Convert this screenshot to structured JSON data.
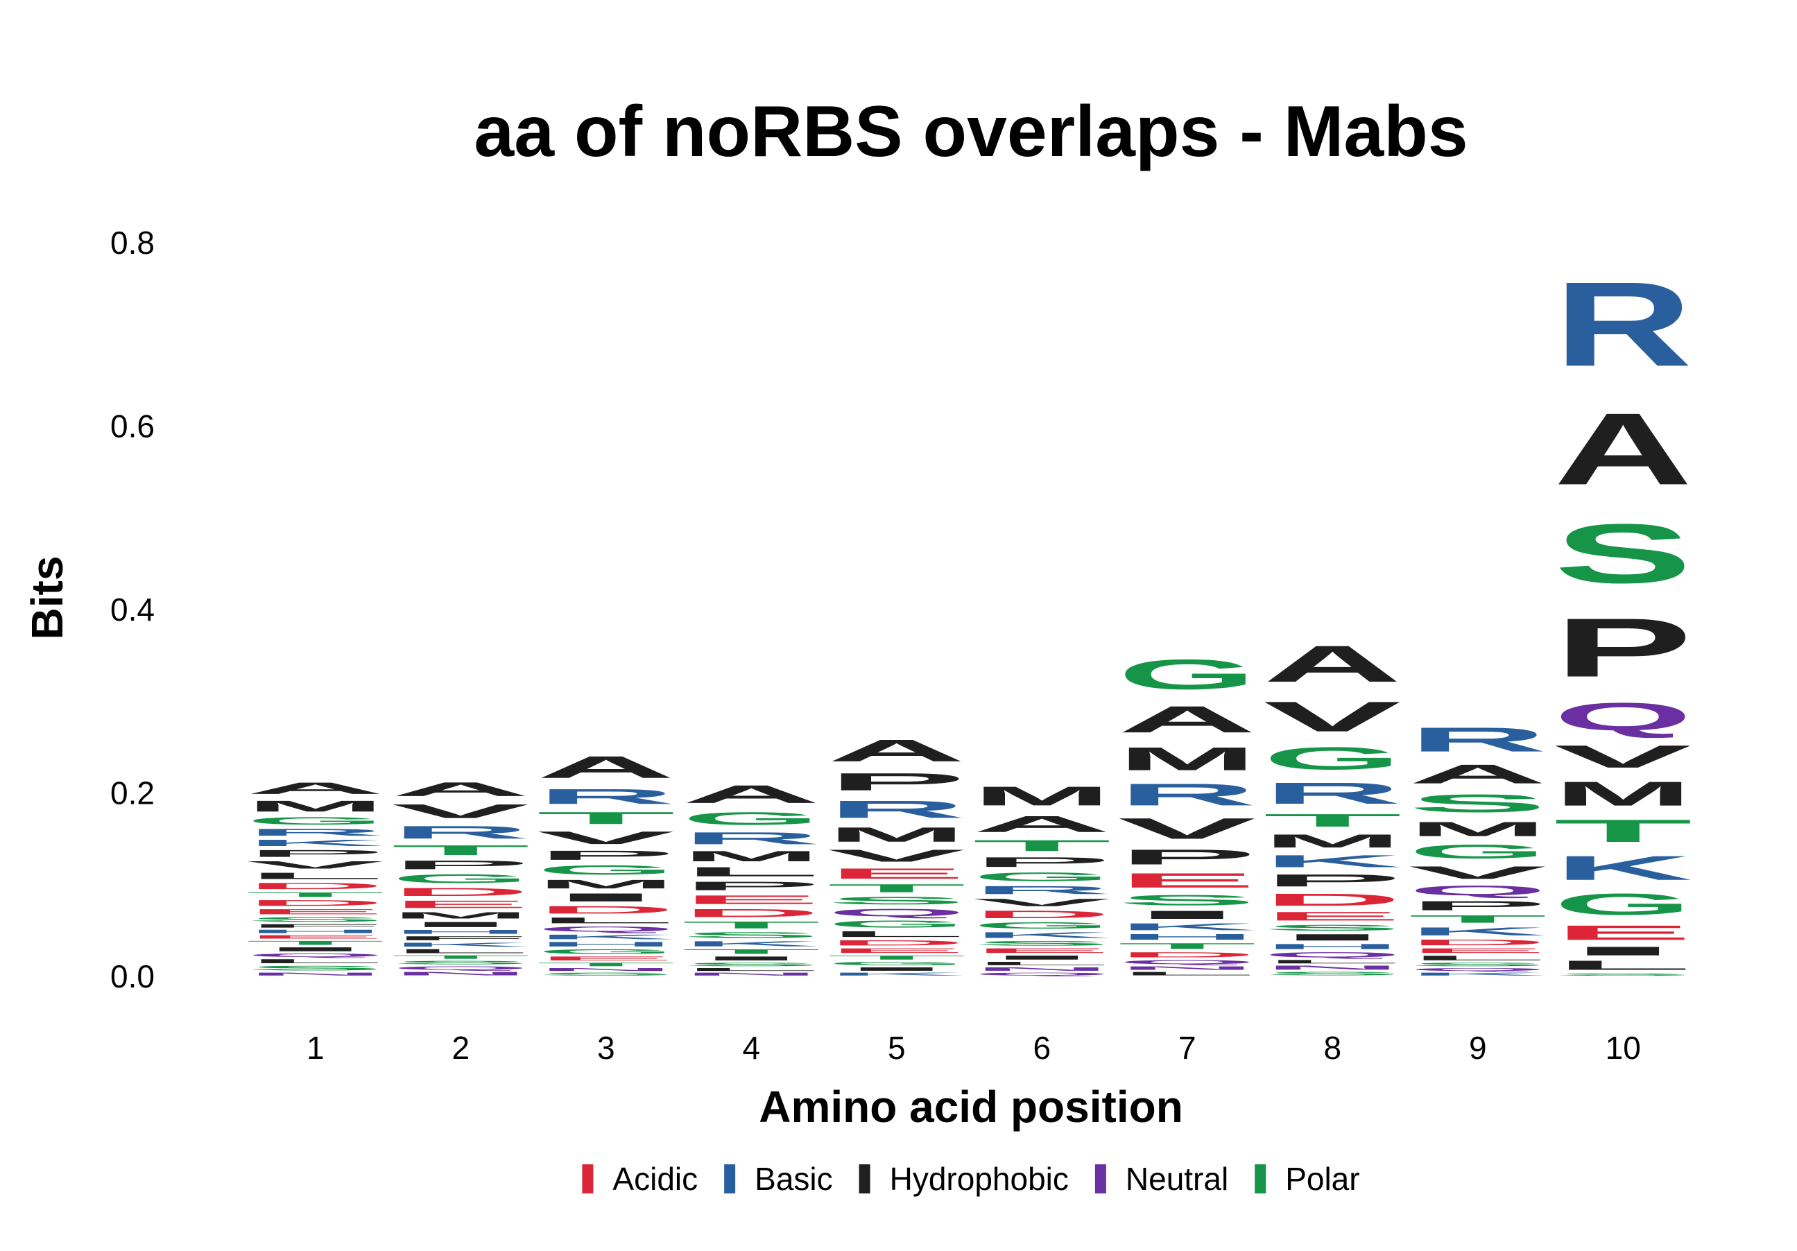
{
  "chart_data": {
    "type": "sequence-logo",
    "title": "aa of noRBS overlaps - Mabs",
    "xlabel": "Amino acid position",
    "ylabel": "Bits",
    "ylim": [
      0,
      0.8
    ],
    "yticks": [
      0.0,
      0.2,
      0.4,
      0.6,
      0.8
    ],
    "ytick_labels": [
      "0.0",
      "0.2",
      "0.4",
      "0.6",
      "0.8"
    ],
    "positions": [
      1,
      2,
      3,
      4,
      5,
      6,
      7,
      8,
      9,
      10
    ],
    "position_labels": [
      "1",
      "2",
      "3",
      "4",
      "5",
      "6",
      "7",
      "8",
      "9",
      "10"
    ],
    "legend": {
      "placement": "bottom",
      "entries": [
        {
          "name": "Acidic",
          "color": "#DC2537"
        },
        {
          "name": "Basic",
          "color": "#2A5F9E"
        },
        {
          "name": "Hydrophobic",
          "color": "#1F1F1F"
        },
        {
          "name": "Neutral",
          "color": "#6A2FA0"
        },
        {
          "name": "Polar",
          "color": "#169548"
        }
      ]
    },
    "aa_classes": {
      "Acidic": [
        "D",
        "E"
      ],
      "Basic": [
        "H",
        "K",
        "R"
      ],
      "Hydrophobic": [
        "A",
        "F",
        "I",
        "L",
        "M",
        "P",
        "V",
        "W"
      ],
      "Neutral": [
        "N",
        "Q"
      ],
      "Polar": [
        "C",
        "G",
        "S",
        "T",
        "Y"
      ]
    },
    "stacks": [
      {
        "position": 1,
        "letters": [
          {
            "aa": "N",
            "bits": 0.005
          },
          {
            "aa": "S",
            "bits": 0.008
          },
          {
            "aa": "L",
            "bits": 0.007
          },
          {
            "aa": "Q",
            "bits": 0.006
          },
          {
            "aa": "I",
            "bits": 0.007
          },
          {
            "aa": "T",
            "bits": 0.007
          },
          {
            "aa": "E",
            "bits": 0.006
          },
          {
            "aa": "H",
            "bits": 0.006
          },
          {
            "aa": "F",
            "bits": 0.006
          },
          {
            "aa": "S",
            "bits": 0.008
          },
          {
            "aa": "E",
            "bits": 0.009
          },
          {
            "aa": "D",
            "bits": 0.01
          },
          {
            "aa": "T",
            "bits": 0.008
          },
          {
            "aa": "D",
            "bits": 0.011
          },
          {
            "aa": "L",
            "bits": 0.011
          },
          {
            "aa": "V",
            "bits": 0.013
          },
          {
            "aa": "P",
            "bits": 0.012
          },
          {
            "aa": "K",
            "bits": 0.011
          },
          {
            "aa": "R",
            "bits": 0.012
          },
          {
            "aa": "G",
            "bits": 0.013
          },
          {
            "aa": "M",
            "bits": 0.019
          },
          {
            "aa": "A",
            "bits": 0.02
          }
        ]
      },
      {
        "position": 2,
        "letters": [
          {
            "aa": "N",
            "bits": 0.006
          },
          {
            "aa": "Q",
            "bits": 0.006
          },
          {
            "aa": "S",
            "bits": 0.006
          },
          {
            "aa": "T",
            "bits": 0.006
          },
          {
            "aa": "L",
            "bits": 0.007
          },
          {
            "aa": "K",
            "bits": 0.007
          },
          {
            "aa": "F",
            "bits": 0.007
          },
          {
            "aa": "H",
            "bits": 0.007
          },
          {
            "aa": "I",
            "bits": 0.009
          },
          {
            "aa": "M",
            "bits": 0.011
          },
          {
            "aa": "E",
            "bits": 0.013
          },
          {
            "aa": "D",
            "bits": 0.014
          },
          {
            "aa": "G",
            "bits": 0.015
          },
          {
            "aa": "P",
            "bits": 0.015
          },
          {
            "aa": "T",
            "bits": 0.017
          },
          {
            "aa": "R",
            "bits": 0.022
          },
          {
            "aa": "V",
            "bits": 0.024
          },
          {
            "aa": "A",
            "bits": 0.024
          }
        ]
      },
      {
        "position": 3,
        "letters": [
          {
            "aa": "S",
            "bits": 0.005
          },
          {
            "aa": "N",
            "bits": 0.005
          },
          {
            "aa": "T",
            "bits": 0.006
          },
          {
            "aa": "E",
            "bits": 0.007
          },
          {
            "aa": "G",
            "bits": 0.008
          },
          {
            "aa": "H",
            "bits": 0.008
          },
          {
            "aa": "K",
            "bits": 0.008
          },
          {
            "aa": "Q",
            "bits": 0.009
          },
          {
            "aa": "L",
            "bits": 0.01
          },
          {
            "aa": "D",
            "bits": 0.013
          },
          {
            "aa": "I",
            "bits": 0.014
          },
          {
            "aa": "M",
            "bits": 0.015
          },
          {
            "aa": "G",
            "bits": 0.016
          },
          {
            "aa": "P",
            "bits": 0.016
          },
          {
            "aa": "V",
            "bits": 0.022
          },
          {
            "aa": "T",
            "bits": 0.021
          },
          {
            "aa": "R",
            "bits": 0.026
          },
          {
            "aa": "A",
            "bits": 0.038
          }
        ]
      },
      {
        "position": 4,
        "letters": [
          {
            "aa": "N",
            "bits": 0.005
          },
          {
            "aa": "L",
            "bits": 0.005
          },
          {
            "aa": "S",
            "bits": 0.006
          },
          {
            "aa": "I",
            "bits": 0.007
          },
          {
            "aa": "T",
            "bits": 0.008
          },
          {
            "aa": "K",
            "bits": 0.009
          },
          {
            "aa": "S",
            "bits": 0.01
          },
          {
            "aa": "T",
            "bits": 0.012
          },
          {
            "aa": "D",
            "bits": 0.014
          },
          {
            "aa": "E",
            "bits": 0.015
          },
          {
            "aa": "P",
            "bits": 0.015
          },
          {
            "aa": "L",
            "bits": 0.016
          },
          {
            "aa": "M",
            "bits": 0.018
          },
          {
            "aa": "R",
            "bits": 0.021
          },
          {
            "aa": "G",
            "bits": 0.022
          },
          {
            "aa": "A",
            "bits": 0.031
          }
        ]
      },
      {
        "position": 5,
        "letters": [
          {
            "aa": "K",
            "bits": 0.005
          },
          {
            "aa": "I",
            "bits": 0.006
          },
          {
            "aa": "G",
            "bits": 0.006
          },
          {
            "aa": "T",
            "bits": 0.007
          },
          {
            "aa": "E",
            "bits": 0.008
          },
          {
            "aa": "D",
            "bits": 0.009
          },
          {
            "aa": "L",
            "bits": 0.01
          },
          {
            "aa": "G",
            "bits": 0.012
          },
          {
            "aa": "Q",
            "bits": 0.013
          },
          {
            "aa": "S",
            "bits": 0.013
          },
          {
            "aa": "T",
            "bits": 0.014
          },
          {
            "aa": "E",
            "bits": 0.018
          },
          {
            "aa": "V",
            "bits": 0.021
          },
          {
            "aa": "M",
            "bits": 0.025
          },
          {
            "aa": "R",
            "bits": 0.03
          },
          {
            "aa": "P",
            "bits": 0.03
          },
          {
            "aa": "A",
            "bits": 0.038
          }
        ]
      },
      {
        "position": 6,
        "letters": [
          {
            "aa": "Q",
            "bits": 0.005
          },
          {
            "aa": "N",
            "bits": 0.006
          },
          {
            "aa": "L",
            "bits": 0.006
          },
          {
            "aa": "I",
            "bits": 0.007
          },
          {
            "aa": "E",
            "bits": 0.008
          },
          {
            "aa": "S",
            "bits": 0.008
          },
          {
            "aa": "K",
            "bits": 0.01
          },
          {
            "aa": "G",
            "bits": 0.011
          },
          {
            "aa": "D",
            "bits": 0.013
          },
          {
            "aa": "V",
            "bits": 0.013
          },
          {
            "aa": "R",
            "bits": 0.014
          },
          {
            "aa": "G",
            "bits": 0.015
          },
          {
            "aa": "P",
            "bits": 0.017
          },
          {
            "aa": "T",
            "bits": 0.019
          },
          {
            "aa": "A",
            "bits": 0.028
          },
          {
            "aa": "M",
            "bits": 0.033
          }
        ]
      },
      {
        "position": 7,
        "letters": [
          {
            "aa": "L",
            "bits": 0.006
          },
          {
            "aa": "N",
            "bits": 0.006
          },
          {
            "aa": "Q",
            "bits": 0.007
          },
          {
            "aa": "D",
            "bits": 0.009
          },
          {
            "aa": "T",
            "bits": 0.01
          },
          {
            "aa": "H",
            "bits": 0.01
          },
          {
            "aa": "K",
            "bits": 0.012
          },
          {
            "aa": "I",
            "bits": 0.014
          },
          {
            "aa": "S",
            "bits": 0.018
          },
          {
            "aa": "E",
            "bits": 0.025
          },
          {
            "aa": "P",
            "bits": 0.026
          },
          {
            "aa": "V",
            "bits": 0.036
          },
          {
            "aa": "R",
            "bits": 0.038
          },
          {
            "aa": "M",
            "bits": 0.04
          },
          {
            "aa": "A",
            "bits": 0.046
          },
          {
            "aa": "G",
            "bits": 0.052
          }
        ]
      },
      {
        "position": 8,
        "letters": [
          {
            "aa": "S",
            "bits": 0.006
          },
          {
            "aa": "N",
            "bits": 0.007
          },
          {
            "aa": "L",
            "bits": 0.006
          },
          {
            "aa": "Q",
            "bits": 0.009
          },
          {
            "aa": "H",
            "bits": 0.009
          },
          {
            "aa": "I",
            "bits": 0.011
          },
          {
            "aa": "S",
            "bits": 0.01
          },
          {
            "aa": "E",
            "bits": 0.015
          },
          {
            "aa": "D",
            "bits": 0.021
          },
          {
            "aa": "P",
            "bits": 0.021
          },
          {
            "aa": "K",
            "bits": 0.021
          },
          {
            "aa": "M",
            "bits": 0.023
          },
          {
            "aa": "T",
            "bits": 0.022
          },
          {
            "aa": "R",
            "bits": 0.037
          },
          {
            "aa": "G",
            "bits": 0.039
          },
          {
            "aa": "V",
            "bits": 0.052
          },
          {
            "aa": "A",
            "bits": 0.063
          }
        ]
      },
      {
        "position": 9,
        "letters": [
          {
            "aa": "K",
            "bits": 0.005
          },
          {
            "aa": "Q",
            "bits": 0.005
          },
          {
            "aa": "S",
            "bits": 0.006
          },
          {
            "aa": "L",
            "bits": 0.008
          },
          {
            "aa": "E",
            "bits": 0.008
          },
          {
            "aa": "D",
            "bits": 0.01
          },
          {
            "aa": "K",
            "bits": 0.014
          },
          {
            "aa": "T",
            "bits": 0.013
          },
          {
            "aa": "P",
            "bits": 0.016
          },
          {
            "aa": "Q",
            "bits": 0.017
          },
          {
            "aa": "V",
            "bits": 0.022
          },
          {
            "aa": "G",
            "bits": 0.024
          },
          {
            "aa": "M",
            "bits": 0.025
          },
          {
            "aa": "S",
            "bits": 0.031
          },
          {
            "aa": "A",
            "bits": 0.033
          },
          {
            "aa": "R",
            "bits": 0.042
          }
        ]
      },
      {
        "position": 10,
        "letters": [
          {
            "aa": "S",
            "bits": 0.004
          },
          {
            "aa": "L",
            "bits": 0.016
          },
          {
            "aa": "I",
            "bits": 0.015
          },
          {
            "aa": "E",
            "bits": 0.025
          },
          {
            "aa": "G",
            "bits": 0.037
          },
          {
            "aa": "K",
            "bits": 0.042
          },
          {
            "aa": "T",
            "bits": 0.039
          },
          {
            "aa": "M",
            "bits": 0.042
          },
          {
            "aa": "V",
            "bits": 0.039
          },
          {
            "aa": "Q",
            "bits": 0.048
          },
          {
            "aa": "P",
            "bits": 0.102
          },
          {
            "aa": "S",
            "bits": 0.103
          },
          {
            "aa": "A",
            "bits": 0.125
          },
          {
            "aa": "R",
            "bits": 0.147
          }
        ]
      }
    ]
  }
}
